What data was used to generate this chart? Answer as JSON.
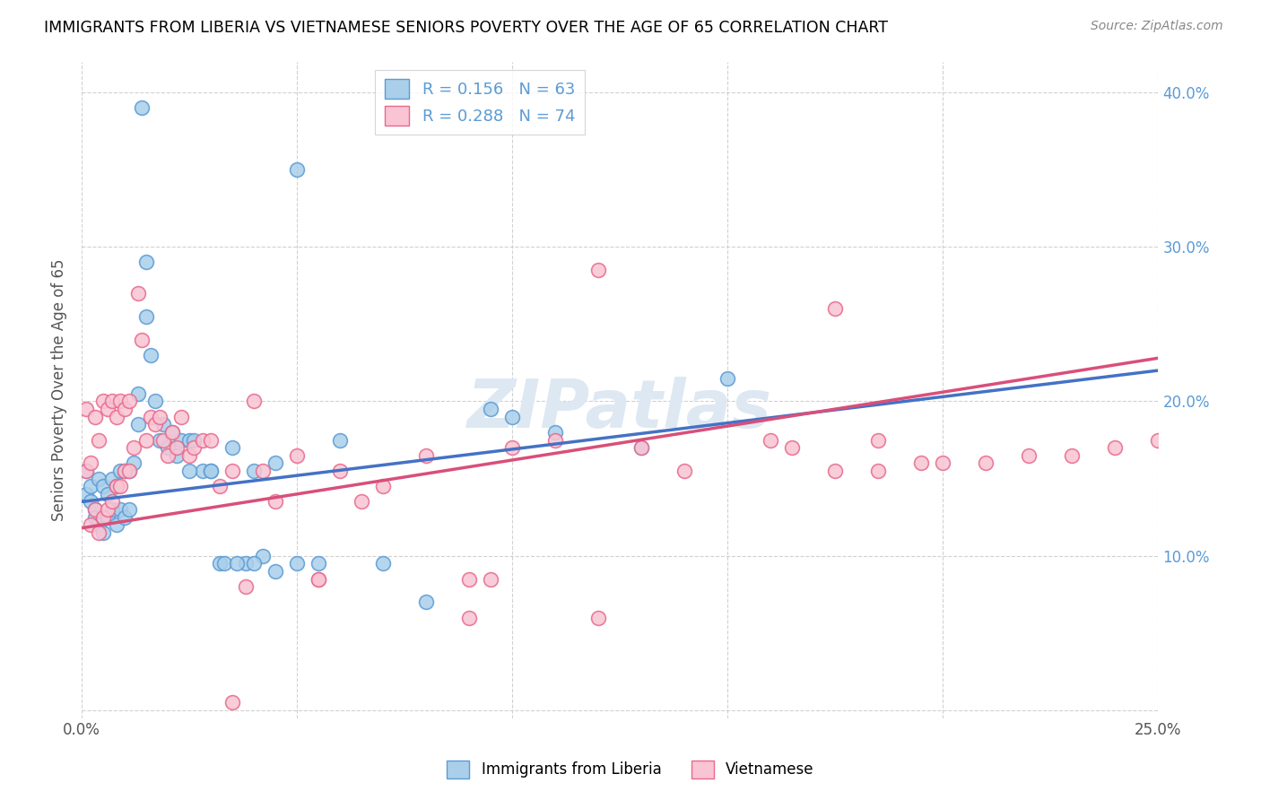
{
  "title": "IMMIGRANTS FROM LIBERIA VS VIETNAMESE SENIORS POVERTY OVER THE AGE OF 65 CORRELATION CHART",
  "source": "Source: ZipAtlas.com",
  "ylabel": "Seniors Poverty Over the Age of 65",
  "xlim": [
    0.0,
    0.25
  ],
  "ylim": [
    -0.005,
    0.42
  ],
  "xtick_positions": [
    0.0,
    0.05,
    0.1,
    0.15,
    0.2,
    0.25
  ],
  "xtick_labels": [
    "0.0%",
    "",
    "",
    "",
    "",
    "25.0%"
  ],
  "ytick_positions": [
    0.0,
    0.1,
    0.2,
    0.3,
    0.4
  ],
  "ytick_labels_right": [
    "",
    "10.0%",
    "20.0%",
    "30.0%",
    "40.0%"
  ],
  "blue_face": "#aacfea",
  "blue_edge": "#5b9bd5",
  "pink_face": "#f9c4d4",
  "pink_edge": "#e8698a",
  "line_blue": "#4472c4",
  "line_pink": "#d94f7a",
  "R_blue": 0.156,
  "N_blue": 63,
  "R_pink": 0.288,
  "N_pink": 74,
  "watermark_text": "ZIPatlas",
  "legend_label_blue": "Immigrants from Liberia",
  "legend_label_pink": "Vietnamese",
  "blue_line_intercept": 0.135,
  "blue_line_slope": 0.34,
  "pink_line_intercept": 0.118,
  "pink_line_slope": 0.44,
  "blue_x": [
    0.001,
    0.001,
    0.002,
    0.002,
    0.003,
    0.003,
    0.004,
    0.004,
    0.005,
    0.005,
    0.006,
    0.006,
    0.007,
    0.007,
    0.008,
    0.008,
    0.009,
    0.009,
    0.01,
    0.01,
    0.011,
    0.011,
    0.012,
    0.013,
    0.013,
    0.014,
    0.015,
    0.015,
    0.016,
    0.017,
    0.018,
    0.019,
    0.02,
    0.021,
    0.022,
    0.023,
    0.025,
    0.026,
    0.028,
    0.03,
    0.032,
    0.035,
    0.038,
    0.04,
    0.042,
    0.045,
    0.05,
    0.055,
    0.06,
    0.07,
    0.08,
    0.095,
    0.1,
    0.11,
    0.13,
    0.15,
    0.025,
    0.03,
    0.033,
    0.036,
    0.04,
    0.045,
    0.05
  ],
  "blue_y": [
    0.155,
    0.14,
    0.135,
    0.145,
    0.13,
    0.125,
    0.15,
    0.12,
    0.145,
    0.115,
    0.14,
    0.125,
    0.15,
    0.13,
    0.145,
    0.12,
    0.155,
    0.13,
    0.155,
    0.125,
    0.155,
    0.13,
    0.16,
    0.205,
    0.185,
    0.39,
    0.29,
    0.255,
    0.23,
    0.2,
    0.175,
    0.185,
    0.17,
    0.18,
    0.165,
    0.175,
    0.175,
    0.175,
    0.155,
    0.155,
    0.095,
    0.17,
    0.095,
    0.155,
    0.1,
    0.09,
    0.095,
    0.095,
    0.175,
    0.095,
    0.07,
    0.195,
    0.19,
    0.18,
    0.17,
    0.215,
    0.155,
    0.155,
    0.095,
    0.095,
    0.095,
    0.16,
    0.35
  ],
  "pink_x": [
    0.001,
    0.001,
    0.002,
    0.002,
    0.003,
    0.003,
    0.004,
    0.004,
    0.005,
    0.005,
    0.006,
    0.006,
    0.007,
    0.007,
    0.008,
    0.008,
    0.009,
    0.009,
    0.01,
    0.01,
    0.011,
    0.011,
    0.012,
    0.013,
    0.014,
    0.015,
    0.016,
    0.017,
    0.018,
    0.019,
    0.02,
    0.021,
    0.022,
    0.023,
    0.025,
    0.026,
    0.028,
    0.03,
    0.032,
    0.035,
    0.038,
    0.04,
    0.042,
    0.045,
    0.05,
    0.055,
    0.06,
    0.065,
    0.07,
    0.08,
    0.09,
    0.095,
    0.1,
    0.11,
    0.12,
    0.13,
    0.16,
    0.175,
    0.185,
    0.195,
    0.035,
    0.055,
    0.09,
    0.12,
    0.14,
    0.165,
    0.175,
    0.185,
    0.2,
    0.21,
    0.22,
    0.23,
    0.24,
    0.25
  ],
  "pink_y": [
    0.195,
    0.155,
    0.12,
    0.16,
    0.19,
    0.13,
    0.175,
    0.115,
    0.2,
    0.125,
    0.195,
    0.13,
    0.2,
    0.135,
    0.19,
    0.145,
    0.2,
    0.145,
    0.195,
    0.155,
    0.2,
    0.155,
    0.17,
    0.27,
    0.24,
    0.175,
    0.19,
    0.185,
    0.19,
    0.175,
    0.165,
    0.18,
    0.17,
    0.19,
    0.165,
    0.17,
    0.175,
    0.175,
    0.145,
    0.155,
    0.08,
    0.2,
    0.155,
    0.135,
    0.165,
    0.085,
    0.155,
    0.135,
    0.145,
    0.165,
    0.085,
    0.085,
    0.17,
    0.175,
    0.285,
    0.17,
    0.175,
    0.26,
    0.175,
    0.16,
    0.005,
    0.085,
    0.06,
    0.06,
    0.155,
    0.17,
    0.155,
    0.155,
    0.16,
    0.16,
    0.165,
    0.165,
    0.17,
    0.175
  ]
}
